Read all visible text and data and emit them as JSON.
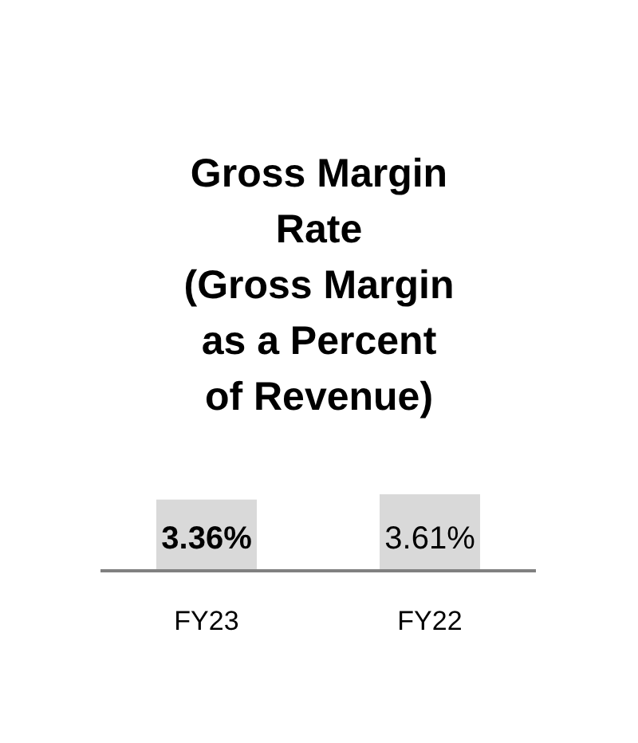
{
  "chart_data": {
    "type": "bar",
    "title": "Gross Margin\nRate\n(Gross Margin\nas a Percent\nof Revenue)",
    "categories": [
      "FY23",
      "FY22"
    ],
    "values": [
      3.36,
      3.61
    ],
    "value_labels": [
      "3.36%",
      "3.61%"
    ],
    "color": "#d9d9d9",
    "ylim": [
      0,
      3.61
    ]
  }
}
